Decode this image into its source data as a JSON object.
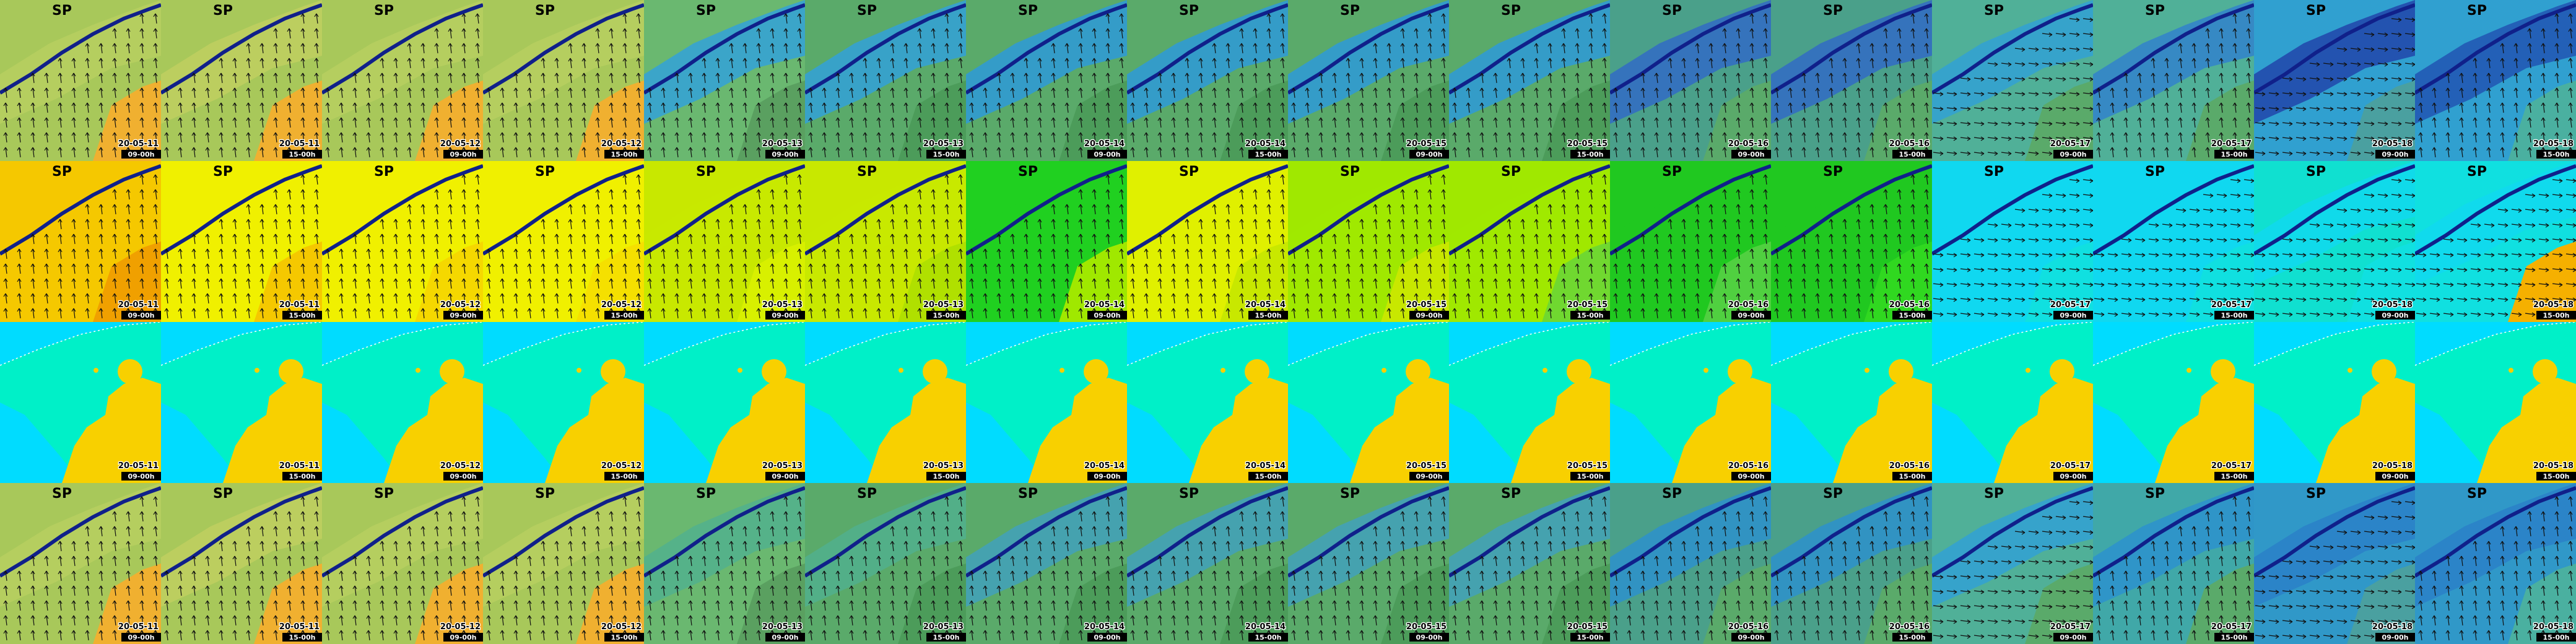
{
  "rows": [
    {
      "tiles": [
        {
          "title": "SP",
          "date": "20-05-11",
          "time": "09-00h"
        },
        {
          "title": "SP",
          "date": "20-05-11",
          "time": "15-00h"
        },
        {
          "title": "SP",
          "date": "20-05-12",
          "time": "09-00h"
        },
        {
          "title": "SP",
          "date": "20-05-12",
          "time": "15-00h"
        },
        {
          "title": "SP",
          "date": "20-05-13",
          "time": "09-00h"
        },
        {
          "title": "SP",
          "date": "20-05-13",
          "time": "15-00h"
        },
        {
          "title": "SP",
          "date": "20-05-14",
          "time": "09-00h"
        },
        {
          "title": "SP",
          "date": "20-05-14",
          "time": "15-00h"
        },
        {
          "title": "SP",
          "date": "20-05-15",
          "time": "09-00h"
        },
        {
          "title": "SP",
          "date": "20-05-15",
          "time": "15-00h"
        },
        {
          "title": "SP",
          "date": "20-05-16",
          "time": "09-00h"
        },
        {
          "title": "SP",
          "date": "20-05-16",
          "time": "15-00h"
        },
        {
          "title": "SP",
          "date": "20-05-17",
          "time": "09-00h"
        },
        {
          "title": "SP",
          "date": "20-05-17",
          "time": "15-00h"
        },
        {
          "title": "SP",
          "date": "20-05-18",
          "time": "09-00h"
        },
        {
          "title": "SP",
          "date": "20-05-18",
          "time": "15-00h"
        }
      ]
    },
    {
      "tiles": [
        {
          "title": "SP",
          "date": "20-05-11",
          "time": "09-00h"
        },
        {
          "title": "SP",
          "date": "20-05-11",
          "time": "15-00h"
        },
        {
          "title": "SP",
          "date": "20-05-12",
          "time": "09-00h"
        },
        {
          "title": "SP",
          "date": "20-05-12",
          "time": "15-00h"
        },
        {
          "title": "SP",
          "date": "20-05-13",
          "time": "09-00h"
        },
        {
          "title": "SP",
          "date": "20-05-13",
          "time": "15-00h"
        },
        {
          "title": "SP",
          "date": "20-05-14",
          "time": "09-00h"
        },
        {
          "title": "SP",
          "date": "20-05-14",
          "time": "15-00h"
        },
        {
          "title": "SP",
          "date": "20-05-15",
          "time": "09-00h"
        },
        {
          "title": "SP",
          "date": "20-05-15",
          "time": "15-00h"
        },
        {
          "title": "SP",
          "date": "20-05-16",
          "time": "09-00h"
        },
        {
          "title": "SP",
          "date": "20-05-16",
          "time": "15-00h"
        },
        {
          "title": "SP",
          "date": "20-05-17",
          "time": "09-00h"
        },
        {
          "title": "SP",
          "date": "20-05-17",
          "time": "15-00h"
        },
        {
          "title": "SP",
          "date": "20-05-18",
          "time": "09-00h"
        },
        {
          "title": "SP",
          "date": "20-05-18",
          "time": "15-00h"
        }
      ]
    },
    {
      "tiles": [
        {
          "date": "20-05-11",
          "time": "09-00h"
        },
        {
          "date": "20-05-11",
          "time": "15-00h"
        },
        {
          "date": "20-05-12",
          "time": "09-00h"
        },
        {
          "date": "20-05-12",
          "time": "15-00h"
        },
        {
          "date": "20-05-13",
          "time": "09-00h"
        },
        {
          "date": "20-05-13",
          "time": "15-00h"
        },
        {
          "date": "20-05-14",
          "time": "09-00h"
        },
        {
          "date": "20-05-14",
          "time": "15-00h"
        },
        {
          "date": "20-05-15",
          "time": "09-00h"
        },
        {
          "date": "20-05-15",
          "time": "15-00h"
        },
        {
          "date": "20-05-16",
          "time": "09-00h"
        },
        {
          "date": "20-05-16",
          "time": "15-00h"
        },
        {
          "date": "20-05-17",
          "time": "09-00h"
        },
        {
          "date": "20-05-17",
          "time": "15-00h"
        },
        {
          "date": "20-05-18",
          "time": "09-00h"
        },
        {
          "date": "20-05-18",
          "time": "15-00h"
        }
      ]
    },
    {
      "tiles": [
        {
          "title": "SP",
          "date": "20-05-11",
          "time": "09-00h"
        },
        {
          "title": "SP",
          "date": "20-05-11",
          "time": "15-00h"
        },
        {
          "title": "SP",
          "date": "20-05-12",
          "time": "09-00h"
        },
        {
          "title": "SP",
          "date": "20-05-12",
          "time": "15-00h"
        },
        {
          "title": "SP",
          "date": "20-05-13",
          "time": "09-00h"
        },
        {
          "title": "SP",
          "date": "20-05-13",
          "time": "15-00h"
        },
        {
          "title": "SP",
          "date": "20-05-14",
          "time": "09-00h"
        },
        {
          "title": "SP",
          "date": "20-05-14",
          "time": "15-00h"
        },
        {
          "title": "SP",
          "date": "20-05-15",
          "time": "09-00h"
        },
        {
          "title": "SP",
          "date": "20-05-15",
          "time": "15-00h"
        },
        {
          "title": "SP",
          "date": "20-05-16",
          "time": "09-00h"
        },
        {
          "title": "SP",
          "date": "20-05-16",
          "time": "15-00h"
        },
        {
          "title": "SP",
          "date": "20-05-17",
          "time": "09-00h"
        },
        {
          "title": "SP",
          "date": "20-05-17",
          "time": "15-00h"
        },
        {
          "title": "SP",
          "date": "20-05-18",
          "time": "09-00h"
        },
        {
          "title": "SP",
          "date": "20-05-18",
          "time": "15-00h"
        }
      ]
    }
  ]
}
